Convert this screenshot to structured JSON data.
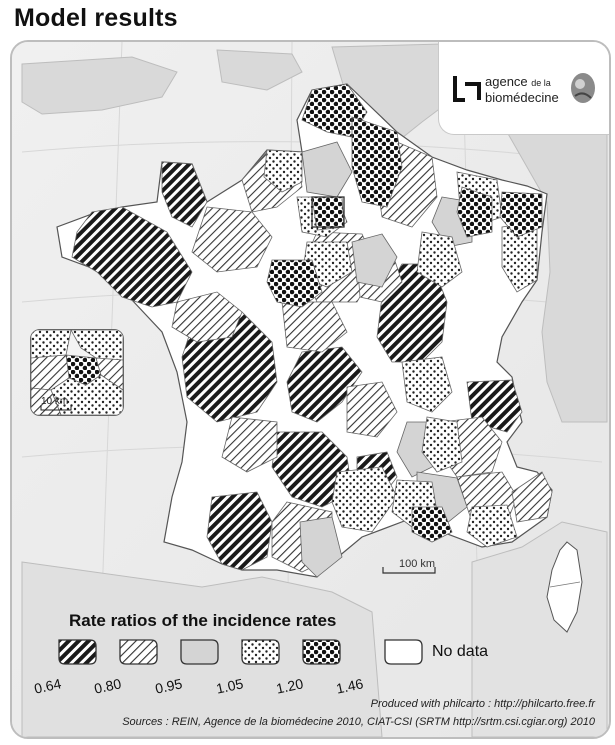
{
  "title": "Model results",
  "logo": {
    "line1_prefix": "agence",
    "line1_suffix": "de la",
    "line2": "biomédecine"
  },
  "inset": {
    "scale_label": "10 km"
  },
  "scale_bar": {
    "label": "100 km"
  },
  "legend": {
    "title": "Rate ratios of the incidence rates",
    "breaks": [
      "0.64",
      "0.80",
      "0.95",
      "1.05",
      "1.20",
      "1.46"
    ],
    "classes": [
      "dense-stripes",
      "light-stripes",
      "plain-grey",
      "light-dots",
      "dense-dots"
    ],
    "no_data_label": "No data"
  },
  "credits": {
    "line1": "Produced with philcarto : http://philcarto.free.fr",
    "line2": "Sources : REIN, Agence de la biomédecine 2010, CIAT-CSI (SRTM http://srtm.csi.cgiar.org) 2010"
  }
}
